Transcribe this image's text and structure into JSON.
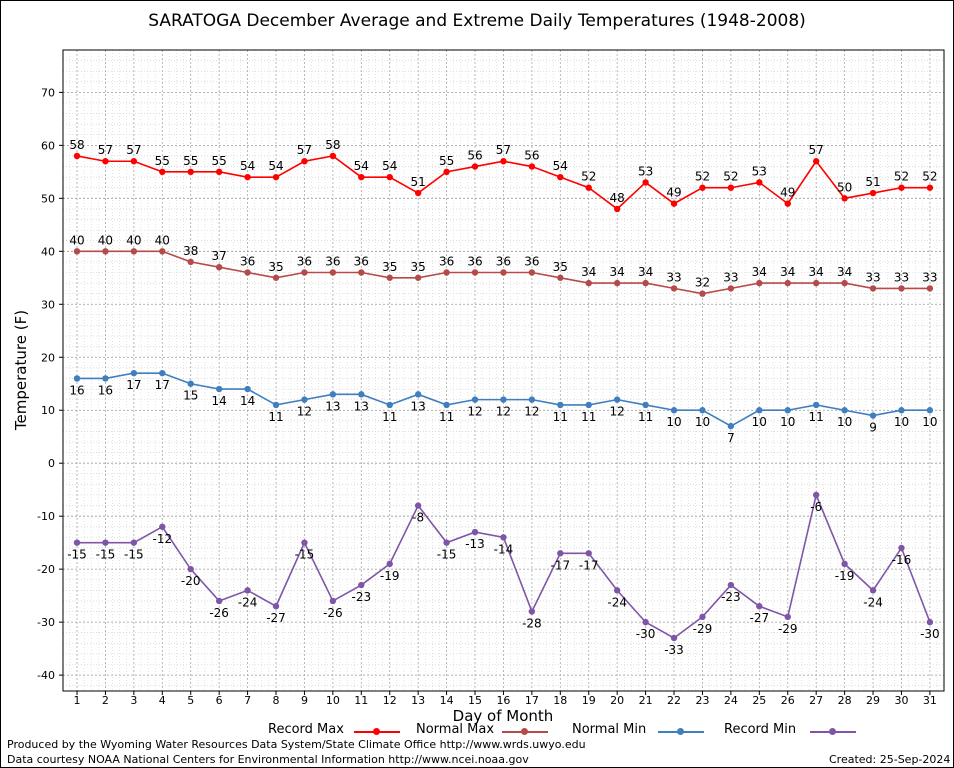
{
  "chart_data": {
    "type": "line",
    "title": "SARATOGA December Average and Extreme Daily Temperatures (1948-2008)",
    "xlabel": "Day of Month",
    "ylabel": "Temperature (F)",
    "ylim": [
      -43,
      78
    ],
    "yticks": [
      -40,
      -30,
      -20,
      -10,
      0,
      10,
      20,
      30,
      40,
      50,
      60,
      70
    ],
    "x": [
      1,
      2,
      3,
      4,
      5,
      6,
      7,
      8,
      9,
      10,
      11,
      12,
      13,
      14,
      15,
      16,
      17,
      18,
      19,
      20,
      21,
      22,
      23,
      24,
      25,
      26,
      27,
      28,
      29,
      30,
      31
    ],
    "grid": true,
    "legend_placement": "bottom",
    "series": [
      {
        "name": "Record Max",
        "color": "#ff0000",
        "values": [
          58,
          57,
          57,
          55,
          55,
          55,
          54,
          54,
          57,
          58,
          54,
          54,
          51,
          55,
          56,
          57,
          56,
          54,
          52,
          48,
          53,
          49,
          52,
          52,
          53,
          49,
          57,
          50,
          51,
          52,
          52
        ]
      },
      {
        "name": "Normal Max",
        "color": "#b54a4a",
        "values": [
          40,
          40,
          40,
          40,
          38,
          37,
          36,
          35,
          36,
          36,
          36,
          35,
          35,
          36,
          36,
          36,
          36,
          35,
          34,
          34,
          34,
          33,
          32,
          33,
          34,
          34,
          34,
          34,
          33,
          33,
          33
        ]
      },
      {
        "name": "Normal Min",
        "color": "#3f7fbf",
        "values": [
          16,
          16,
          17,
          17,
          15,
          14,
          14,
          11,
          12,
          13,
          13,
          11,
          13,
          11,
          12,
          12,
          12,
          11,
          11,
          12,
          11,
          10,
          10,
          7,
          10,
          10,
          11,
          10,
          9,
          10,
          10
        ]
      },
      {
        "name": "Record Min",
        "color": "#7f56a7",
        "values": [
          -15,
          -15,
          -15,
          -12,
          -20,
          -26,
          -24,
          -27,
          -15,
          -26,
          -23,
          -19,
          -8,
          -15,
          -13,
          -14,
          -28,
          -17,
          -17,
          -24,
          -30,
          -33,
          -29,
          -23,
          -27,
          -29,
          -6,
          -19,
          -24,
          -16,
          -30
        ]
      }
    ]
  },
  "footer": {
    "produced_by": "Produced by the Wyoming Water Resources Data System/State Climate Office http://www.wrds.uwyo.edu",
    "courtesy": "Data courtesy NOAA National Centers for Environmental Information http://www.ncei.noaa.gov",
    "created": "Created:  25-Sep-2024"
  }
}
